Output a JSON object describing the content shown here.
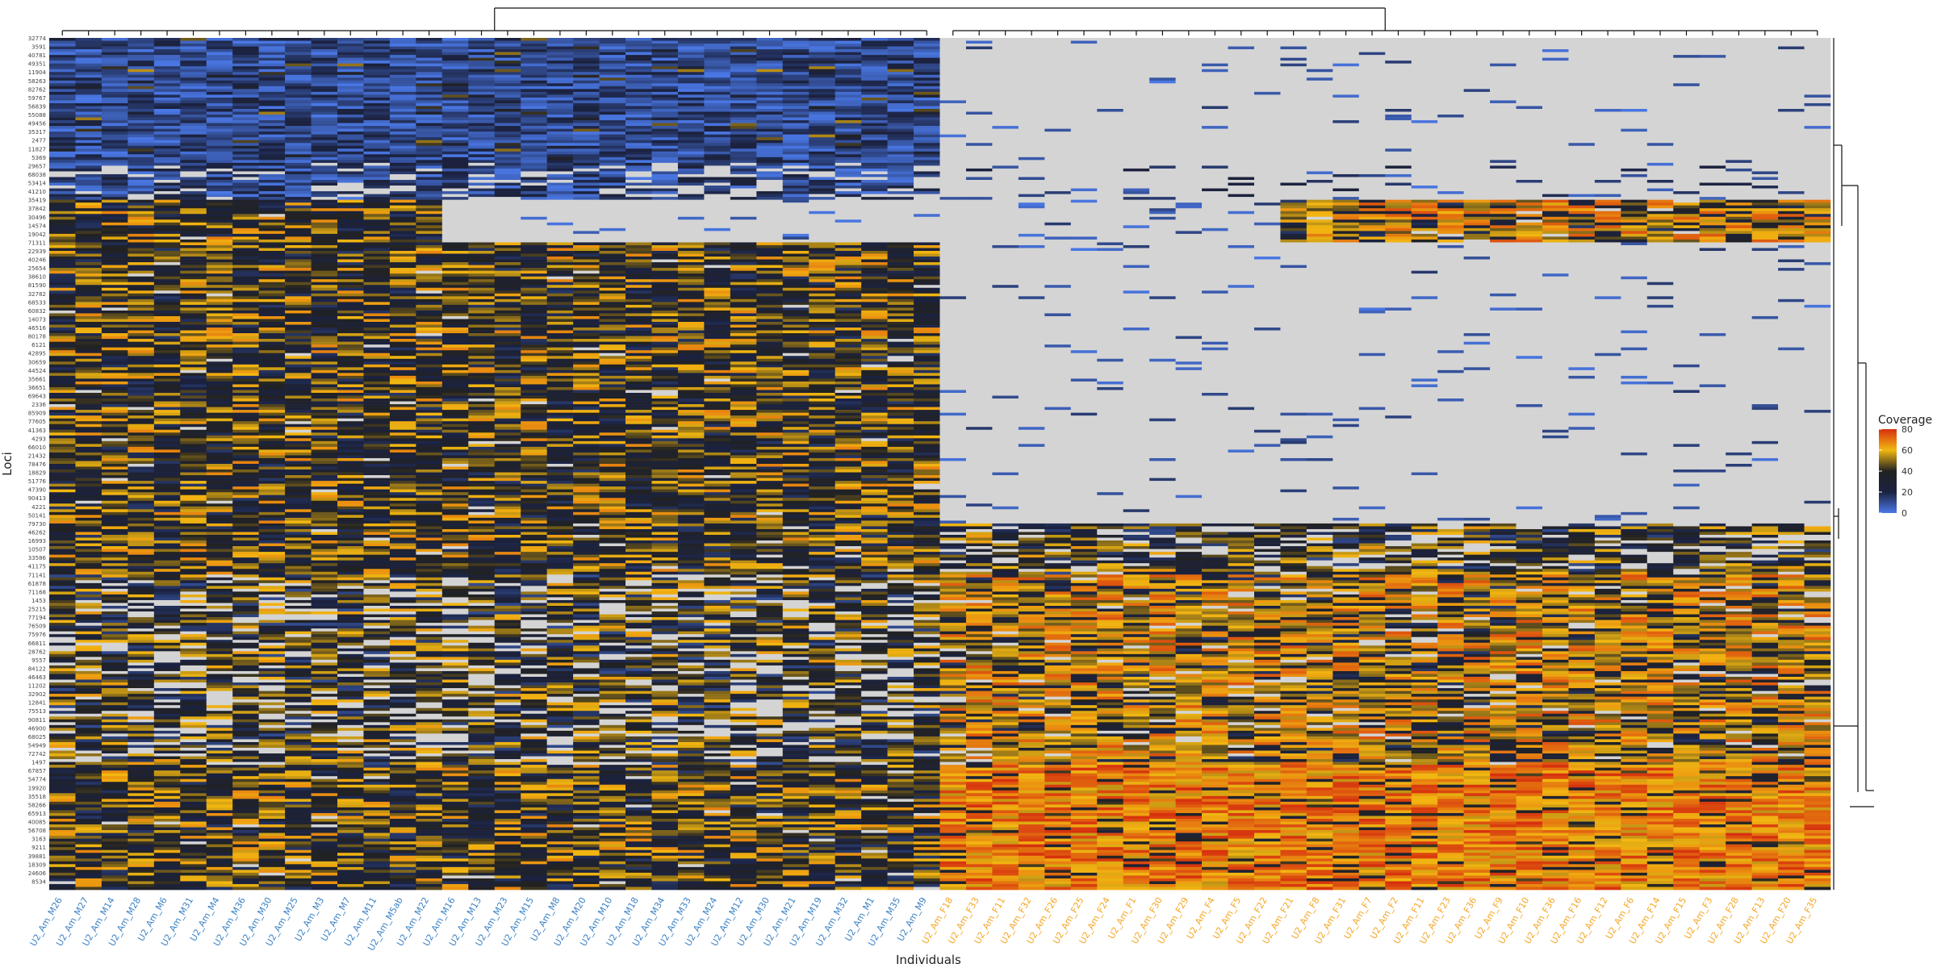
{
  "chart_data": {
    "type": "heatmap",
    "xlabel": "Individuals",
    "ylabel": "Loci",
    "legend_title": "Coverage",
    "legend_ticks": [
      0,
      20,
      40,
      60,
      80
    ],
    "color_scale": {
      "min": 0,
      "max": 80,
      "stops": [
        {
          "value": 0,
          "color": "#4a78e6"
        },
        {
          "value": 20,
          "color": "#1b2240"
        },
        {
          "value": 40,
          "color": "#222222"
        },
        {
          "value": 60,
          "color": "#f2b711"
        },
        {
          "value": 80,
          "color": "#d6300e"
        }
      ],
      "na_color": "#d4d4d4"
    },
    "colors": {
      "group_M_label": "#3b82c4",
      "group_F_label": "#f5a623"
    },
    "columns": [
      {
        "label": "U2_Am_M26",
        "group": "M"
      },
      {
        "label": "U2_Am_M27",
        "group": "M"
      },
      {
        "label": "U2_Am_M14",
        "group": "M"
      },
      {
        "label": "U2_Am_M28",
        "group": "M"
      },
      {
        "label": "U2_Am_M6",
        "group": "M"
      },
      {
        "label": "U2_Am_M31",
        "group": "M"
      },
      {
        "label": "U2_Am_M4",
        "group": "M"
      },
      {
        "label": "U2_Am_M36",
        "group": "M"
      },
      {
        "label": "U2_Am_M30",
        "group": "M"
      },
      {
        "label": "U2_Am_M25",
        "group": "M"
      },
      {
        "label": "U2_Am_M3",
        "group": "M"
      },
      {
        "label": "U2_Am_M7",
        "group": "M"
      },
      {
        "label": "U2_Am_M11",
        "group": "M"
      },
      {
        "label": "U2_Am_M5ab",
        "group": "M"
      },
      {
        "label": "U2_Am_M22",
        "group": "M"
      },
      {
        "label": "U2_Am_M16",
        "group": "M"
      },
      {
        "label": "U2_Am_M13",
        "group": "M"
      },
      {
        "label": "U2_Am_M23",
        "group": "M"
      },
      {
        "label": "U2_Am_M15",
        "group": "M"
      },
      {
        "label": "U2_Am_M8",
        "group": "M"
      },
      {
        "label": "U2_Am_M20",
        "group": "M"
      },
      {
        "label": "U2_Am_M10",
        "group": "M"
      },
      {
        "label": "U2_Am_M18",
        "group": "M"
      },
      {
        "label": "U2_Am_M34",
        "group": "M"
      },
      {
        "label": "U2_Am_M33",
        "group": "M"
      },
      {
        "label": "U2_Am_M24",
        "group": "M"
      },
      {
        "label": "U2_Am_M12",
        "group": "M"
      },
      {
        "label": "U2_Am_M30",
        "group": "M"
      },
      {
        "label": "U2_Am_M21",
        "group": "M"
      },
      {
        "label": "U2_Am_M19",
        "group": "M"
      },
      {
        "label": "U2_Am_M32",
        "group": "M"
      },
      {
        "label": "U2_Am_M1",
        "group": "M"
      },
      {
        "label": "U2_Am_M35",
        "group": "M"
      },
      {
        "label": "U2_Am_M9",
        "group": "M"
      },
      {
        "label": "U2_Am_F18",
        "group": "F"
      },
      {
        "label": "U2_Am_F33",
        "group": "F"
      },
      {
        "label": "U2_Am_F11",
        "group": "F"
      },
      {
        "label": "U2_Am_F32",
        "group": "F"
      },
      {
        "label": "U2_Am_F26",
        "group": "F"
      },
      {
        "label": "U2_Am_F25",
        "group": "F"
      },
      {
        "label": "U2_Am_F24",
        "group": "F"
      },
      {
        "label": "U2_Am_F1",
        "group": "F"
      },
      {
        "label": "U2_Am_F30",
        "group": "F"
      },
      {
        "label": "U2_Am_F29",
        "group": "F"
      },
      {
        "label": "U2_Am_F4",
        "group": "F"
      },
      {
        "label": "U2_Am_F5",
        "group": "F"
      },
      {
        "label": "U2_Am_F22",
        "group": "F"
      },
      {
        "label": "U2_Am_F21",
        "group": "F"
      },
      {
        "label": "U2_Am_F8",
        "group": "F"
      },
      {
        "label": "U2_Am_F31",
        "group": "F"
      },
      {
        "label": "U2_Am_F7",
        "group": "F"
      },
      {
        "label": "U2_Am_F2",
        "group": "F"
      },
      {
        "label": "U2_Am_F11",
        "group": "F"
      },
      {
        "label": "U2_Am_F23",
        "group": "F"
      },
      {
        "label": "U2_Am_F36",
        "group": "F"
      },
      {
        "label": "U2_Am_F9",
        "group": "F"
      },
      {
        "label": "U2_Am_F10",
        "group": "F"
      },
      {
        "label": "U2_Am_F36",
        "group": "F"
      },
      {
        "label": "U2_Am_F16",
        "group": "F"
      },
      {
        "label": "U2_Am_F12",
        "group": "F"
      },
      {
        "label": "U2_Am_F6",
        "group": "F"
      },
      {
        "label": "U2_Am_F14",
        "group": "F"
      },
      {
        "label": "U2_Am_F15",
        "group": "F"
      },
      {
        "label": "U2_Am_F3",
        "group": "F"
      },
      {
        "label": "U2_Am_F28",
        "group": "F"
      },
      {
        "label": "U2_Am_F13",
        "group": "F"
      },
      {
        "label": "U2_Am_F20",
        "group": "F"
      },
      {
        "label": "U2_Am_F35",
        "group": "F"
      }
    ],
    "row_count": 300,
    "row_blocks": [
      {
        "rows": [
          0,
          43
        ],
        "M": "low",
        "F": "missing",
        "F_sparse": "low"
      },
      {
        "rows": [
          44,
          56
        ],
        "M": "low-sparse",
        "F": "missing-sparse"
      },
      {
        "rows": [
          57,
          71
        ],
        "M": "mixed",
        "M_missing_cols": [
          15,
          33
        ],
        "F": "missing",
        "F_high_cols": [
          47,
          67
        ]
      },
      {
        "rows": [
          72,
          170
        ],
        "M": "mixed",
        "F": "missing"
      },
      {
        "rows": [
          171,
          188
        ],
        "M": "mixed",
        "F": "mixed-sparse"
      },
      {
        "rows": [
          189,
          255
        ],
        "M": "mixed-sparse",
        "F": "high"
      },
      {
        "rows": [
          256,
          299
        ],
        "M": "mixed",
        "F": "very-high"
      }
    ]
  }
}
